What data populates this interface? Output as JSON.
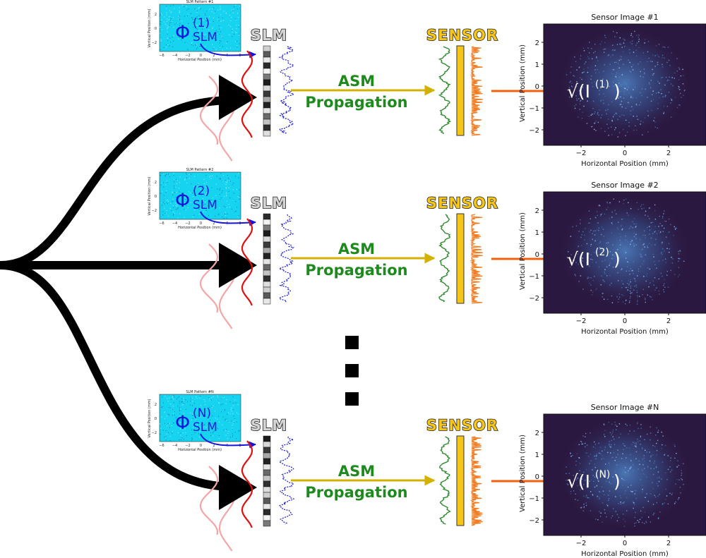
{
  "dots_count": 3,
  "colors": {
    "input_arrow": "#000000",
    "slm_pattern_bg": "#16d3f0",
    "phi_text": "#1515e0",
    "blue_arrow": "#1515e0",
    "red_wave": "#e01010",
    "pink_wave": "#f4a6a6",
    "blue_wave": "#1a1ad8",
    "asm_arrow": "#d4b000",
    "asm_text": "#1e8a1e",
    "green_wave": "#2e8b2e",
    "sensor_bar": "#f5c518",
    "orange_wave": "#f07a20",
    "orange_arrow": "#f06010",
    "sensor_image_bg": "#2b1840",
    "speckle": "#4f86c8"
  },
  "rows": [
    {
      "id": "1",
      "slm_pattern": {
        "title": "SLM Pattern #1",
        "ylabel": "Vertical Position (mm)",
        "xlabel": "Horizontal Position (mm)",
        "x_ticks": [
          "−6",
          "−4",
          "−2",
          "0",
          "2",
          "4",
          "6"
        ],
        "y_ticks": [
          "2",
          "0",
          "−2"
        ],
        "phi_symbol": "Φ",
        "phi_sup": "(1)",
        "phi_sub": "SLM"
      },
      "slm_label": "SLM",
      "asm_line1": "ASM",
      "asm_line2": "Propagation",
      "sensor_label": "SENSOR",
      "sensor_image": {
        "title": "Sensor Image #1",
        "ylabel": "Vertical Position (mm)",
        "xlabel": "Horizontal Position (mm)",
        "x_ticks": [
          "−2",
          "0",
          "2"
        ],
        "y_ticks": [
          "2",
          "1",
          "0",
          "−1",
          "−2"
        ],
        "sqrt_label": "√(I",
        "sqrt_sup": "(1)",
        "sqrt_close": ")"
      }
    },
    {
      "id": "2",
      "slm_pattern": {
        "title": "SLM Pattern #2",
        "ylabel": "Vertical Position (mm)",
        "xlabel": "Horizontal Position (mm)",
        "x_ticks": [
          "−6",
          "−4",
          "−2",
          "0",
          "2",
          "4",
          "6"
        ],
        "y_ticks": [
          "2",
          "0",
          "−2"
        ],
        "phi_symbol": "Φ",
        "phi_sup": "(2)",
        "phi_sub": "SLM"
      },
      "slm_label": "SLM",
      "asm_line1": "ASM",
      "asm_line2": "Propagation",
      "sensor_label": "SENSOR",
      "sensor_image": {
        "title": "Sensor Image #2",
        "ylabel": "Vertical Position (mm)",
        "xlabel": "Horizontal Position (mm)",
        "x_ticks": [
          "−2",
          "0",
          "2"
        ],
        "y_ticks": [
          "2",
          "1",
          "0",
          "−1",
          "−2"
        ],
        "sqrt_label": "√(I",
        "sqrt_sup": "(2)",
        "sqrt_close": ")"
      }
    },
    {
      "id": "N",
      "slm_pattern": {
        "title": "SLM Pattern #N",
        "ylabel": "Vertical Position (mm)",
        "xlabel": "Horizontal Position (mm)",
        "x_ticks": [
          "−6",
          "−4",
          "−2",
          "0",
          "2",
          "4",
          "6"
        ],
        "y_ticks": [
          "2",
          "0",
          "−2"
        ],
        "phi_symbol": "Φ",
        "phi_sup": "(N)",
        "phi_sub": "SLM"
      },
      "slm_label": "SLM",
      "asm_line1": "ASM",
      "asm_line2": "Propagation",
      "sensor_label": "SENSOR",
      "sensor_image": {
        "title": "Sensor Image #N",
        "ylabel": "Vertical Position (mm)",
        "xlabel": "Horizontal Position (mm)",
        "x_ticks": [
          "−2",
          "0",
          "2"
        ],
        "y_ticks": [
          "2",
          "1",
          "0",
          "−1",
          "−2"
        ],
        "sqrt_label": "√(I",
        "sqrt_sup": "(N)",
        "sqrt_close": ")"
      }
    }
  ]
}
